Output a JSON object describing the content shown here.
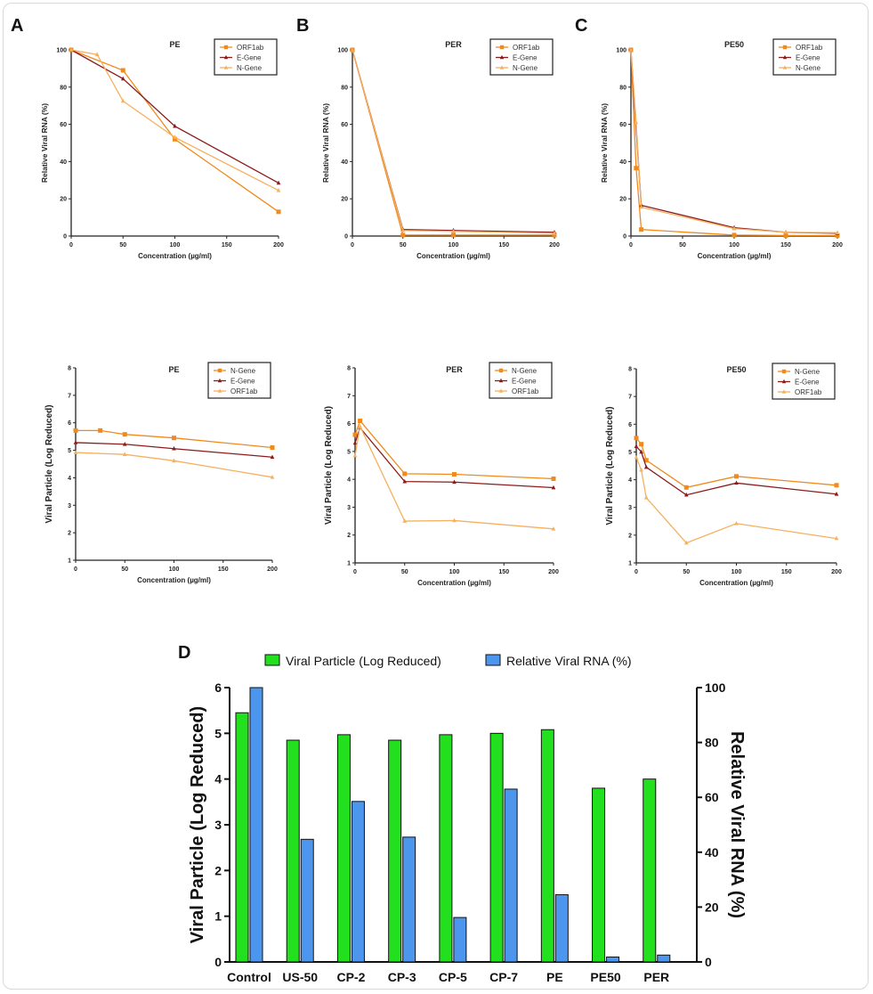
{
  "panel_letters": {
    "A": "A",
    "B": "B",
    "C": "C",
    "D": "D"
  },
  "colors": {
    "orange": "#f08a1c",
    "dark_red": "#8b1c1c",
    "light_orange": "#f5b060",
    "green": "#22e01e",
    "blue": "#4d96ee"
  },
  "chart_data": [
    {
      "type": "line",
      "title": "PE",
      "xlabel": "Concentration (µg/ml)",
      "ylabel": "Relative Viral RNA (%)",
      "xlim": [
        0,
        200
      ],
      "ylim": [
        0,
        100
      ],
      "xticks": [
        0,
        50,
        100,
        150,
        200
      ],
      "yticks": [
        0,
        20,
        40,
        60,
        80,
        100
      ],
      "legend": "top-right",
      "grid": false,
      "series": [
        {
          "name": "ORF1ab",
          "color": "#f08a1c",
          "marker": "square",
          "x": [
            0,
            50,
            100,
            200
          ],
          "y": [
            100,
            89,
            52,
            13
          ]
        },
        {
          "name": "E-Gene",
          "color": "#8b1c1c",
          "marker": "triangle",
          "x": [
            0,
            50,
            100,
            200
          ],
          "y": [
            100,
            84.5,
            59,
            28.5
          ]
        },
        {
          "name": "N-Gene",
          "color": "#f5b060",
          "marker": "triangle",
          "x": [
            0,
            25,
            50,
            100,
            200
          ],
          "y": [
            100,
            97.5,
            72.5,
            53,
            24.5
          ]
        }
      ]
    },
    {
      "type": "line",
      "title": "PER",
      "xlabel": "Concentration (µg/ml)",
      "ylabel": "Relative Viral RNA (%)",
      "xlim": [
        0,
        200
      ],
      "ylim": [
        0,
        100
      ],
      "xticks": [
        0,
        50,
        100,
        150,
        200
      ],
      "yticks": [
        0,
        20,
        40,
        60,
        80,
        100
      ],
      "legend": "top-right",
      "grid": false,
      "series": [
        {
          "name": "ORF1ab",
          "color": "#f08a1c",
          "marker": "square",
          "x": [
            0,
            50,
            100,
            200
          ],
          "y": [
            100,
            0.5,
            0.5,
            0.5
          ]
        },
        {
          "name": "E-Gene",
          "color": "#8b1c1c",
          "marker": "triangle",
          "x": [
            0,
            50,
            100,
            200
          ],
          "y": [
            100,
            3.5,
            3,
            2
          ]
        },
        {
          "name": "N-Gene",
          "color": "#f5b060",
          "marker": "triangle",
          "x": [
            0,
            50,
            100,
            200
          ],
          "y": [
            100,
            3,
            2.5,
            1.5
          ]
        }
      ]
    },
    {
      "type": "line",
      "title": "PE50",
      "xlabel": "Concentration (µg/ml)",
      "ylabel": "Relative Viral RNA (%)",
      "xlim": [
        0,
        200
      ],
      "ylim": [
        0,
        100
      ],
      "xticks": [
        0,
        50,
        100,
        150,
        200
      ],
      "yticks": [
        0,
        20,
        40,
        60,
        80,
        100
      ],
      "legend": "top-right",
      "grid": false,
      "series": [
        {
          "name": "ORF1ab",
          "color": "#f08a1c",
          "marker": "square",
          "x": [
            0,
            5,
            10,
            100,
            150,
            200
          ],
          "y": [
            100,
            36.5,
            3.5,
            0.5,
            0.3,
            0.3
          ]
        },
        {
          "name": "E-Gene",
          "color": "#8b1c1c",
          "marker": "triangle",
          "x": [
            0,
            10,
            100,
            150,
            200
          ],
          "y": [
            100,
            16.5,
            4.5,
            2,
            1.5
          ]
        },
        {
          "name": "N-Gene",
          "color": "#f5b060",
          "marker": "triangle",
          "x": [
            0,
            5,
            10,
            100,
            150,
            200
          ],
          "y": [
            100,
            61,
            15.5,
            4,
            2,
            1.8
          ]
        }
      ]
    },
    {
      "type": "line",
      "title": "PE",
      "xlabel": "Concentration (µg/ml)",
      "ylabel": "Viral Particle (Log Reduced)",
      "xlim": [
        0,
        200
      ],
      "ylim": [
        1,
        8
      ],
      "xticks": [
        0,
        50,
        100,
        150,
        200
      ],
      "yticks": [
        1,
        2,
        3,
        4,
        5,
        6,
        7,
        8
      ],
      "legend": "top-right",
      "grid": false,
      "series": [
        {
          "name": "N-Gene",
          "color": "#f08a1c",
          "marker": "square",
          "x": [
            0,
            25,
            50,
            100,
            200
          ],
          "y": [
            5.72,
            5.72,
            5.58,
            5.45,
            5.1
          ]
        },
        {
          "name": "E-Gene",
          "color": "#8b1c1c",
          "marker": "triangle",
          "x": [
            0,
            50,
            100,
            200
          ],
          "y": [
            5.28,
            5.22,
            5.06,
            4.75
          ]
        },
        {
          "name": "ORF1ab",
          "color": "#f5b060",
          "marker": "triangle",
          "x": [
            0,
            50,
            100,
            200
          ],
          "y": [
            4.92,
            4.85,
            4.62,
            4.02
          ]
        }
      ]
    },
    {
      "type": "line",
      "title": "PER",
      "xlabel": "Concentration (µg/ml)",
      "ylabel": "Viral Particle (Log Reduced)",
      "xlim": [
        0,
        200
      ],
      "ylim": [
        1,
        8
      ],
      "xticks": [
        0,
        50,
        100,
        150,
        200
      ],
      "yticks": [
        1,
        2,
        3,
        4,
        5,
        6,
        7,
        8
      ],
      "legend": "top-right",
      "grid": false,
      "series": [
        {
          "name": "N-Gene",
          "color": "#f08a1c",
          "marker": "square",
          "x": [
            0,
            5,
            50,
            100,
            200
          ],
          "y": [
            5.6,
            6.1,
            4.2,
            4.18,
            4.02
          ]
        },
        {
          "name": "E-Gene",
          "color": "#8b1c1c",
          "marker": "triangle",
          "x": [
            0,
            5,
            50,
            100,
            200
          ],
          "y": [
            5.3,
            5.85,
            3.92,
            3.9,
            3.7
          ]
        },
        {
          "name": "ORF1ab",
          "color": "#f5b060",
          "marker": "triangle",
          "x": [
            0,
            5,
            50,
            100,
            200
          ],
          "y": [
            4.85,
            5.9,
            2.5,
            2.52,
            2.22
          ]
        }
      ]
    },
    {
      "type": "line",
      "title": "PE50",
      "xlabel": "Concentration (µg/ml)",
      "ylabel": "Viral Particle (Log Reduced)",
      "xlim": [
        0,
        200
      ],
      "ylim": [
        1,
        8
      ],
      "xticks": [
        0,
        50,
        100,
        150,
        200
      ],
      "yticks": [
        1,
        2,
        3,
        4,
        5,
        6,
        7,
        8
      ],
      "legend": "top-right",
      "grid": false,
      "series": [
        {
          "name": "N-Gene",
          "color": "#f08a1c",
          "marker": "square",
          "x": [
            0,
            5,
            10,
            50,
            100,
            200
          ],
          "y": [
            5.5,
            5.28,
            4.7,
            3.72,
            4.12,
            3.8
          ]
        },
        {
          "name": "E-Gene",
          "color": "#8b1c1c",
          "marker": "triangle",
          "x": [
            0,
            5,
            10,
            50,
            100,
            200
          ],
          "y": [
            5.2,
            5.0,
            4.45,
            3.45,
            3.88,
            3.48
          ]
        },
        {
          "name": "ORF1ab",
          "color": "#f5b060",
          "marker": "triangle",
          "x": [
            0,
            5,
            10,
            50,
            100,
            200
          ],
          "y": [
            4.8,
            4.35,
            3.35,
            1.72,
            2.42,
            1.88
          ]
        }
      ]
    },
    {
      "type": "bar",
      "title": "",
      "xlabel": "",
      "ylabel": "Viral Particle (Log Reduced)",
      "y2label": "Relative Viral RNA (%)",
      "ylim": [
        0,
        6
      ],
      "y2lim": [
        0,
        100
      ],
      "yticks": [
        0,
        1,
        2,
        3,
        4,
        5,
        6
      ],
      "y2ticks": [
        0,
        20,
        40,
        60,
        80,
        100
      ],
      "legend": "top",
      "grid": false,
      "categories": [
        "Control",
        "US-50",
        "CP-2",
        "CP-3",
        "CP-5",
        "CP-7",
        "PE",
        "PE50",
        "PER"
      ],
      "series": [
        {
          "name": "Viral Particle (Log Reduced)",
          "color": "#22e01e",
          "axis": "left",
          "values": [
            5.45,
            4.85,
            4.97,
            4.85,
            4.97,
            5.0,
            5.08,
            3.8,
            4.0
          ]
        },
        {
          "name": "Relative Viral RNA (%)",
          "color": "#4d96ee",
          "axis": "right",
          "values": [
            100,
            44.7,
            58.5,
            45.5,
            16.2,
            63,
            24.5,
            1.8,
            2.5
          ]
        }
      ]
    }
  ]
}
